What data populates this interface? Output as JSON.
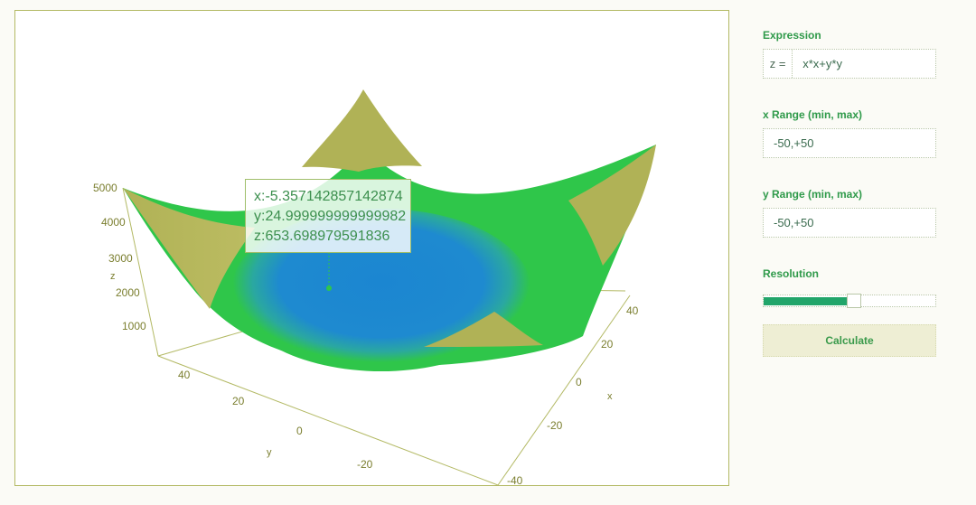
{
  "plot": {
    "tooltip": {
      "x": "x:-5.357142857142874",
      "y": "y:24.999999999999982",
      "z": "z:653.698979591836"
    },
    "axis_titles": {
      "x": "x",
      "y": "y",
      "z": "z"
    },
    "colors": {
      "low": "#1b86d1",
      "mid": "#2fc64a",
      "high": "#b0b256",
      "axes": "#b3b964"
    }
  },
  "chart_data": {
    "type": "surface",
    "expression": "x*x+y*y",
    "x_range": [
      -50,
      50
    ],
    "y_range": [
      -50,
      50
    ],
    "z_ticks": [
      1000,
      2000,
      3000,
      4000,
      5000
    ],
    "x_ticks": [
      -40,
      -20,
      0,
      20,
      40
    ],
    "y_ticks": [
      -20,
      0,
      20,
      40
    ],
    "tooltip_point": {
      "x": -5.357142857142874,
      "y": 24.999999999999982,
      "z": 653.698979591836
    }
  },
  "controls": {
    "expression_label": "Expression",
    "expression_prefix": "z =",
    "expression_value": "x*x+y*y",
    "x_range_label": "x Range (min, max)",
    "x_range_value": "-50,+50",
    "y_range_label": "y Range (min, max)",
    "y_range_value": "-50,+50",
    "resolution_label": "Resolution",
    "resolution_value": 0.57,
    "calculate_label": "Calculate"
  }
}
